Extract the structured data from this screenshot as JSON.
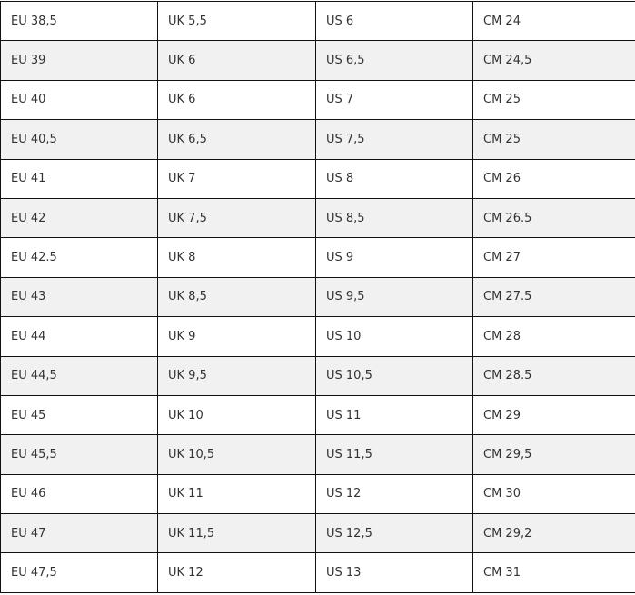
{
  "size_table": {
    "rows": [
      [
        "EU 38,5",
        "UK 5,5",
        "US 6",
        "CM 24"
      ],
      [
        "EU 39",
        "UK 6",
        "US 6,5",
        "CM 24,5"
      ],
      [
        "EU 40",
        "UK 6",
        "US 7",
        "CM 25"
      ],
      [
        "EU 40,5",
        "UK 6,5",
        "US 7,5",
        "CM 25"
      ],
      [
        "EU 41",
        "UK 7",
        "US 8",
        "CM 26"
      ],
      [
        "EU 42",
        "UK 7,5",
        "US 8,5",
        "CM 26.5"
      ],
      [
        "EU 42.5",
        "UK 8",
        "US 9",
        "CM 27"
      ],
      [
        "EU 43",
        "UK 8,5",
        "US 9,5",
        "CM 27.5"
      ],
      [
        "EU 44",
        "UK 9",
        "US 10",
        "CM 28"
      ],
      [
        "EU 44,5",
        "UK 9,5",
        "US 10,5",
        "CM 28.5"
      ],
      [
        "EU 45",
        "UK 10",
        "US 11",
        "CM 29"
      ],
      [
        "EU 45,5",
        "UK 10,5",
        "US 11,5",
        "CM 29,5"
      ],
      [
        "EU 46",
        "UK 11",
        "US 12",
        "CM 30"
      ],
      [
        "EU 47",
        "UK 11,5",
        "US 12,5",
        "CM 29,2"
      ],
      [
        "EU 47,5",
        "UK 12",
        "US 13",
        "CM 31"
      ]
    ]
  }
}
